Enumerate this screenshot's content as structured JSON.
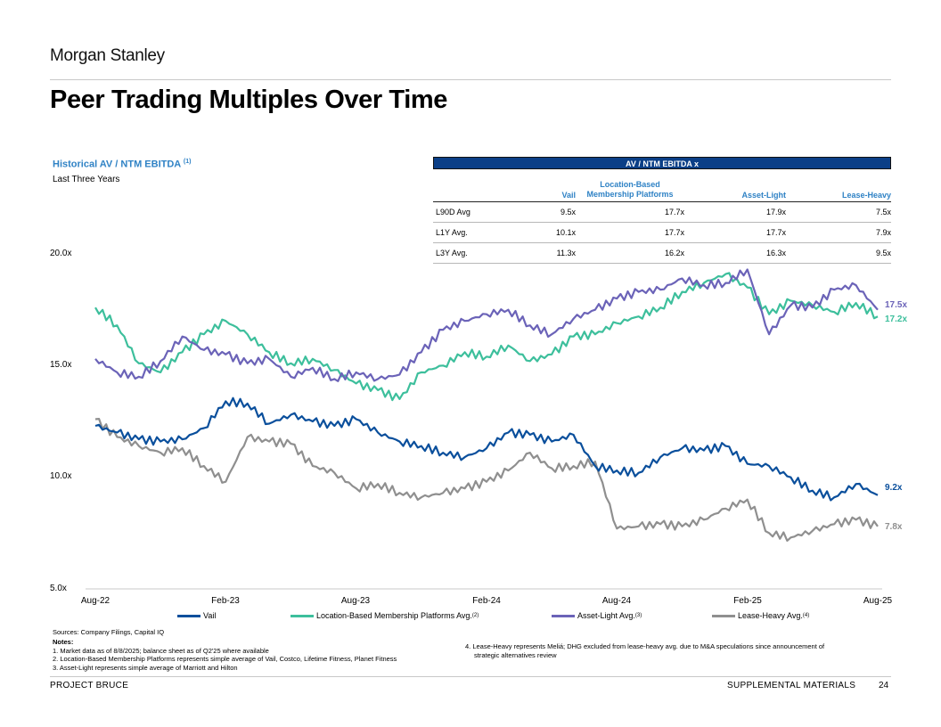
{
  "header": {
    "logo": "Morgan Stanley",
    "title": "Peer Trading Multiples Over Time"
  },
  "chart_header": {
    "title": "Historical AV / NTM EBITDA",
    "title_note": "(1)",
    "subtitle": "Last Three Years"
  },
  "table": {
    "banner": "AV / NTM EBITDA x",
    "columns": [
      "",
      "Vail",
      "Location-Based Membership Platforms",
      "Asset-Light",
      "Lease-Heavy"
    ],
    "rows": [
      [
        "L90D Avg",
        "9.5x",
        "17.7x",
        "17.9x",
        "7.5x"
      ],
      [
        "L1Y Avg.",
        "10.1x",
        "17.7x",
        "17.7x",
        "7.9x"
      ],
      [
        "L3Y Avg.",
        "11.3x",
        "16.2x",
        "16.3x",
        "9.5x"
      ]
    ]
  },
  "chart_data": {
    "type": "line",
    "title": "Historical AV / NTM EBITDA",
    "ylim": [
      5.0,
      20.0
    ],
    "yticks": [
      "20.0x",
      "15.0x",
      "10.0x",
      "5.0x"
    ],
    "yticks_values": [
      20.0,
      15.0,
      10.0,
      5.0
    ],
    "x_ticks": [
      "Aug-22",
      "Feb-23",
      "Aug-23",
      "Feb-24",
      "Aug-24",
      "Feb-25",
      "Aug-25"
    ],
    "x_month_index": [
      0,
      6,
      12,
      18,
      24,
      30,
      36
    ],
    "x": [
      0,
      1,
      2,
      3,
      4,
      5,
      6,
      7,
      8,
      9,
      10,
      11,
      12,
      13,
      14,
      15,
      16,
      17,
      18,
      19,
      20,
      21,
      22,
      23,
      24,
      25,
      26,
      27,
      28,
      29,
      30,
      31,
      32,
      33,
      34,
      35,
      36
    ],
    "series": [
      {
        "name": "Vail",
        "legend_note": "",
        "color": "#0a4f9c",
        "values": [
          12.3,
          12.0,
          11.7,
          11.6,
          11.7,
          12.2,
          13.4,
          13.3,
          12.4,
          12.8,
          12.5,
          12.3,
          12.6,
          12.0,
          11.6,
          11.4,
          11.1,
          10.9,
          11.3,
          12.0,
          11.9,
          11.6,
          11.9,
          10.5,
          10.3,
          10.2,
          10.9,
          11.3,
          11.2,
          11.4,
          10.6,
          10.5,
          10.0,
          9.4,
          9.1,
          9.7,
          9.2
        ],
        "end_label": "9.2x"
      },
      {
        "name": "Location-Based Membership Platforms Avg.",
        "legend_note": "(2)",
        "color": "#3dbf9c",
        "values": [
          17.6,
          16.8,
          15.1,
          14.7,
          15.6,
          16.4,
          17.0,
          16.4,
          15.6,
          15.1,
          15.3,
          14.8,
          14.2,
          13.9,
          13.5,
          14.7,
          15.0,
          15.6,
          15.4,
          15.9,
          15.2,
          15.5,
          16.3,
          16.4,
          16.9,
          17.2,
          17.6,
          18.3,
          18.7,
          19.1,
          18.5,
          17.3,
          17.9,
          17.7,
          17.4,
          17.8,
          17.2
        ],
        "end_label": "17.2x"
      },
      {
        "name": "Asset-Light Avg.",
        "legend_note": "(3)",
        "color": "#6b63b8",
        "values": [
          15.3,
          14.7,
          14.5,
          15.2,
          16.3,
          15.7,
          15.5,
          15.1,
          15.3,
          14.5,
          14.9,
          14.4,
          14.7,
          14.4,
          14.6,
          15.6,
          16.6,
          17.0,
          17.3,
          17.5,
          16.8,
          16.4,
          17.1,
          17.5,
          18.0,
          18.3,
          18.4,
          18.9,
          18.6,
          18.7,
          19.3,
          16.4,
          17.7,
          17.6,
          18.4,
          18.6,
          17.5
        ],
        "end_label": "17.5x"
      },
      {
        "name": "Lease-Heavy Avg.",
        "legend_note": "(4)",
        "color": "#8f8f8f",
        "values": [
          12.6,
          11.8,
          11.4,
          11.1,
          11.3,
          10.5,
          9.8,
          11.8,
          11.6,
          11.5,
          10.5,
          10.2,
          9.5,
          9.7,
          9.3,
          9.1,
          9.3,
          9.5,
          9.8,
          10.3,
          11.1,
          10.4,
          10.5,
          10.7,
          7.7,
          7.8,
          7.9,
          7.8,
          8.1,
          8.6,
          9.0,
          7.5,
          7.3,
          7.6,
          7.9,
          8.1,
          7.8
        ],
        "end_label": "7.8x"
      }
    ]
  },
  "footer": {
    "sources": "Sources: Company Filings, Capital IQ",
    "notes_title": "Notes:",
    "notes": [
      "1.  Market data as of 8/8/2025; balance sheet as of Q2'25 where available",
      "2.  Location-Based Membership Platforms represents simple average of Vail, Costco, Lifetime Fitness, Planet Fitness",
      "3.  Asset-Light represents simple average of Marriott and Hilton"
    ],
    "note4_a": "4.  Lease-Heavy represents Meliá; DHG excluded from lease-heavy avg. due to M&A speculations since announcement of",
    "note4_b": "strategic alternatives review",
    "project": "PROJECT BRUCE",
    "section": "SUPPLEMENTAL MATERIALS",
    "page": "24"
  }
}
